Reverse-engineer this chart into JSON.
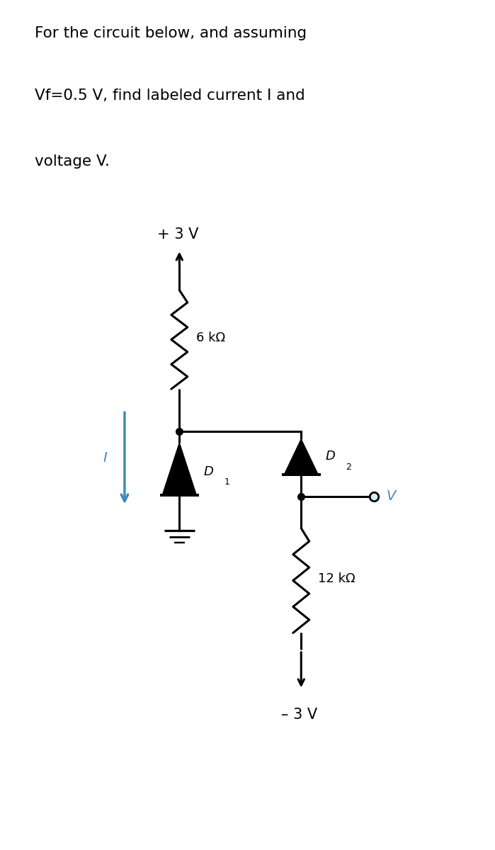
{
  "white_bg": "#ffffff",
  "line_color": "#000000",
  "blue_color": "#4488bb",
  "text_color": "#000000",
  "title_text_line1": "For the circuit below, and assuming",
  "title_text_line2": "Vf=0.5 V, find labeled current I and",
  "title_text_line3": "voltage V.",
  "label_6k": "6 kΩ",
  "label_12k": "12 kΩ",
  "label_plus3": "+ 3 V",
  "label_minus3": "– 3 V",
  "label_D1": "D",
  "label_D2": "D",
  "label_I": "I",
  "label_V": "V",
  "circuit_bg": "#d6ecf8",
  "fig_width": 6.99,
  "fig_height": 12.0
}
